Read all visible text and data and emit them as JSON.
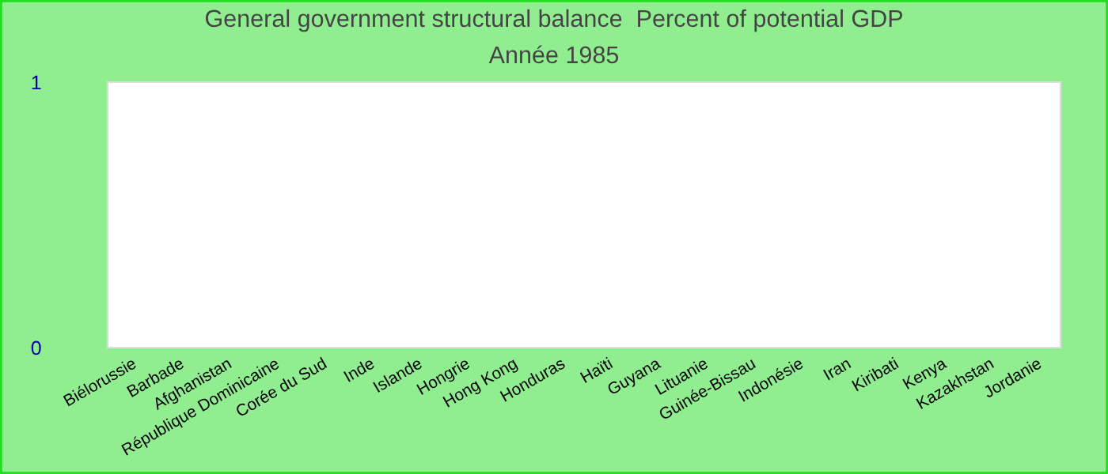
{
  "chart_data": {
    "type": "bar",
    "title": "General government structural balance  Percent of potential GDP",
    "subtitle": "Année 1985",
    "categories": [
      "Biélorussie",
      "Barbade",
      "Afghanistan",
      "République Dominicaine",
      "Corée du Sud",
      "Inde",
      "Islande",
      "Hongrie",
      "Hong Kong",
      "Honduras",
      "Haïti",
      "Guyana",
      "Lituanie",
      "Guinée-Bissau",
      "Indonésie",
      "Iran",
      "Kiribati",
      "Kenya",
      "Kazakhstan",
      "Jordanie"
    ],
    "values": [
      null,
      null,
      null,
      null,
      null,
      null,
      null,
      null,
      null,
      null,
      null,
      null,
      null,
      null,
      null,
      null,
      null,
      null,
      null,
      null
    ],
    "ylim": [
      0,
      1
    ],
    "yticks": [
      0,
      1
    ],
    "grid": false,
    "legend": false
  }
}
